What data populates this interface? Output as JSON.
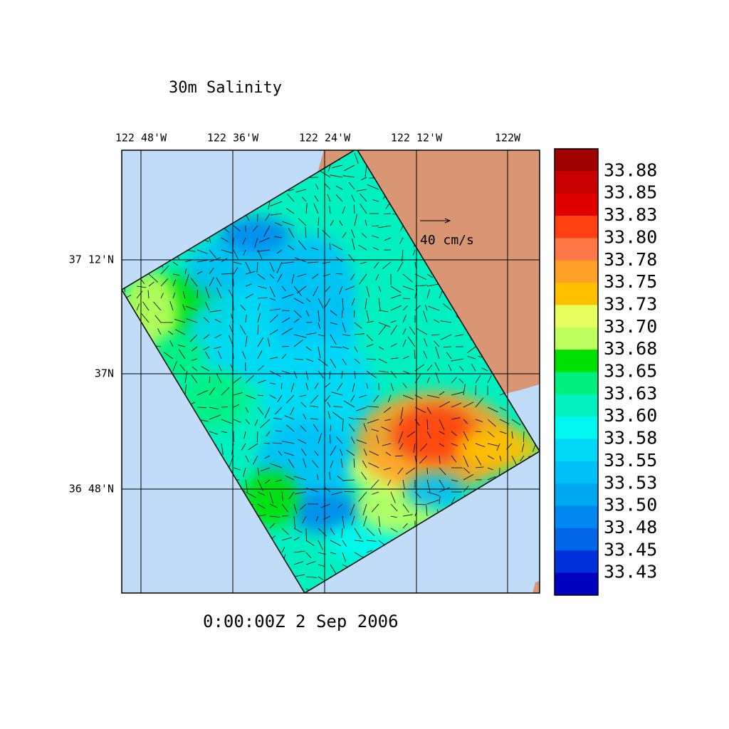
{
  "title": "30m Salinity",
  "lon_labels": [
    "122 48'W",
    "122 36'W",
    "122 24'W",
    "122 12'W",
    "122W"
  ],
  "lat_labels": [
    "37 12'N",
    "37N",
    "36 48'N"
  ],
  "vector_scale": "40 cm/s",
  "timestamp": "0:00:00Z   2 Sep 2006",
  "colorbar": {
    "colors": [
      "#a00000",
      "#c80000",
      "#e00000",
      "#ff4010",
      "#ff7848",
      "#ffa028",
      "#ffc000",
      "#e8ff60",
      "#c0ff60",
      "#00e000",
      "#00f080",
      "#00f0c0",
      "#00f8f0",
      "#00d8f8",
      "#00c0f8",
      "#00a8f0",
      "#0088f0",
      "#0068e8",
      "#0030d8",
      "#0000c0"
    ],
    "labels": [
      "33.88",
      "33.85",
      "33.83",
      "33.80",
      "33.78",
      "33.75",
      "33.73",
      "33.70",
      "33.68",
      "33.65",
      "33.63",
      "33.60",
      "33.58",
      "33.55",
      "33.53",
      "33.50",
      "33.48",
      "33.45",
      "33.43"
    ]
  }
}
